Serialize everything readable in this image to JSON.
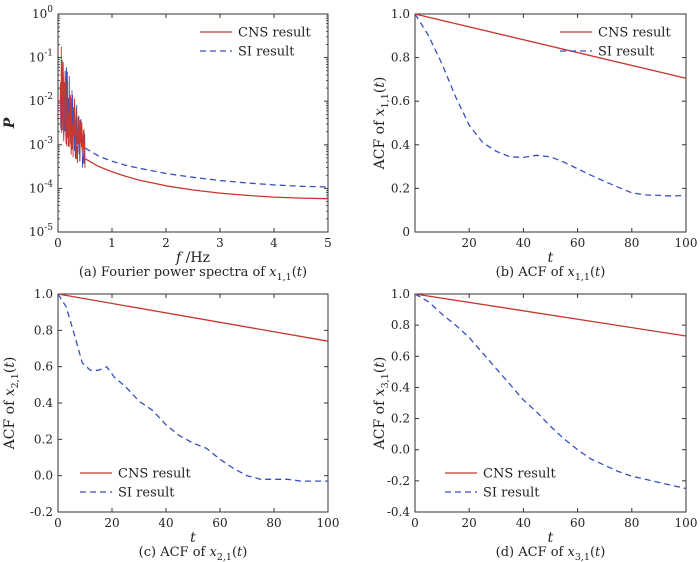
{
  "colors": {
    "cns": "#c8372d",
    "si": "#3a4fbf",
    "axis": "#333333"
  },
  "chart_data": [
    {
      "type": "line",
      "panel": "a",
      "caption": {
        "prefix": "(a) Fourier power spectra of ",
        "var": "x",
        "sub": "1,1",
        "arg": "(t)"
      },
      "xlabel": {
        "italic": "f",
        "rest": " /Hz"
      },
      "ylabel": "P",
      "xscale": "linear",
      "yscale": "log",
      "xlim": [
        0,
        5
      ],
      "ylim": [
        1e-05,
        1
      ],
      "xticks": [
        0,
        1,
        2,
        3,
        4,
        5
      ],
      "xticklabels": [
        "0",
        "1",
        "2",
        "3",
        "4",
        "5"
      ],
      "yticks": [
        1e-05,
        0.0001,
        0.001,
        0.01,
        0.1,
        1
      ],
      "yticklabels": [
        {
          "base": "10",
          "exp": "-5"
        },
        {
          "base": "10",
          "exp": "-4"
        },
        {
          "base": "10",
          "exp": "-3"
        },
        {
          "base": "10",
          "exp": "-2"
        },
        {
          "base": "10",
          "exp": "-1"
        },
        {
          "base": "10",
          "exp": "0"
        }
      ],
      "legend": {
        "position": "top-right"
      },
      "series": [
        {
          "name": "CNS result",
          "style": "solid",
          "color_key": "cns",
          "x": [
            0.5,
            0.75,
            1.0,
            1.25,
            1.5,
            2.0,
            2.5,
            3.0,
            3.5,
            4.0,
            4.5,
            5.0
          ],
          "y": [
            0.00048,
            0.00032,
            0.00024,
            0.00019,
            0.000155,
            0.000115,
            9.2e-05,
            7.8e-05,
            6.9e-05,
            6.3e-05,
            6e-05,
            5.8e-05
          ]
        },
        {
          "name": "SI result",
          "style": "dashed",
          "color_key": "si",
          "x": [
            0.5,
            0.75,
            1.0,
            1.25,
            1.5,
            2.0,
            2.5,
            3.0,
            3.5,
            4.0,
            4.5,
            5.0
          ],
          "y": [
            0.00085,
            0.00055,
            0.00042,
            0.00034,
            0.00029,
            0.00022,
            0.00018,
            0.000152,
            0.000133,
            0.00012,
            0.000112,
            0.000108
          ]
        }
      ],
      "noisy_band": {
        "x_range": [
          0.04,
          0.5
        ],
        "peak": 0.18,
        "floor": 0.0006
      }
    },
    {
      "type": "line",
      "panel": "b",
      "caption": {
        "prefix": "(b) ACF of ",
        "var": "x",
        "sub": "1,1",
        "arg": "(t)"
      },
      "xlabel": {
        "italic": "t",
        "rest": ""
      },
      "ylabel": {
        "prefix": "ACF of ",
        "var": "x",
        "sub": "1,1",
        "arg": "(t)"
      },
      "xlim": [
        0,
        100
      ],
      "ylim": [
        0,
        1.0
      ],
      "xticks": [
        20,
        40,
        60,
        80,
        100
      ],
      "xticklabels": [
        "20",
        "40",
        "60",
        "80",
        "100"
      ],
      "yticks": [
        0,
        0.2,
        0.4,
        0.6,
        0.8,
        1.0
      ],
      "yticklabels": [
        "0",
        "0.2",
        "0.4",
        "0.6",
        "0.8",
        "1.0"
      ],
      "legend": {
        "position": "top-right"
      },
      "series": [
        {
          "name": "CNS result",
          "style": "solid",
          "color_key": "cns",
          "x": [
            0,
            100
          ],
          "y": [
            1.0,
            0.705
          ]
        },
        {
          "name": "SI result",
          "style": "dashed",
          "color_key": "si",
          "x": [
            0,
            5,
            10,
            15,
            20,
            25,
            30,
            35,
            40,
            45,
            50,
            55,
            60,
            65,
            70,
            75,
            80,
            85,
            90,
            95,
            100
          ],
          "y": [
            1.0,
            0.9,
            0.77,
            0.62,
            0.49,
            0.41,
            0.37,
            0.345,
            0.342,
            0.352,
            0.345,
            0.32,
            0.29,
            0.26,
            0.232,
            0.205,
            0.18,
            0.17,
            0.168,
            0.165,
            0.168
          ]
        }
      ]
    },
    {
      "type": "line",
      "panel": "c",
      "caption": {
        "prefix": "(c) ACF of ",
        "var": "x",
        "sub": "2,1",
        "arg": "(t)"
      },
      "xlabel": {
        "italic": "t",
        "rest": ""
      },
      "ylabel": {
        "prefix": "ACF of ",
        "var": "x",
        "sub": "2,1",
        "arg": "(t)"
      },
      "xlim": [
        0,
        100
      ],
      "ylim": [
        -0.2,
        1.0
      ],
      "xticks": [
        0,
        20,
        40,
        60,
        80,
        100
      ],
      "xticklabels": [
        "0",
        "20",
        "40",
        "60",
        "80",
        "100"
      ],
      "yticks": [
        -0.2,
        0,
        0.2,
        0.4,
        0.6,
        0.8,
        1.0
      ],
      "yticklabels": [
        "-0.2",
        "0.0",
        "0.2",
        "0.4",
        "0.6",
        "0.8",
        "1.0"
      ],
      "legend": {
        "position": "bottom-center"
      },
      "series": [
        {
          "name": "CNS result",
          "style": "solid",
          "color_key": "cns",
          "x": [
            0,
            100
          ],
          "y": [
            1.0,
            0.74
          ]
        },
        {
          "name": "SI result",
          "style": "dashed",
          "color_key": "si",
          "x": [
            0,
            3,
            6,
            9,
            12,
            15,
            18,
            21,
            25,
            30,
            35,
            40,
            45,
            50,
            55,
            60,
            65,
            70,
            75,
            80,
            85,
            90,
            95,
            100
          ],
          "y": [
            1.0,
            0.93,
            0.78,
            0.62,
            0.58,
            0.58,
            0.6,
            0.54,
            0.49,
            0.41,
            0.36,
            0.28,
            0.22,
            0.18,
            0.15,
            0.09,
            0.04,
            0.0,
            -0.02,
            -0.02,
            -0.02,
            -0.03,
            -0.03,
            -0.03
          ]
        }
      ]
    },
    {
      "type": "line",
      "panel": "d",
      "caption": {
        "prefix": "(d) ACF of ",
        "var": "x",
        "sub": "3,1",
        "arg": "(t)"
      },
      "xlabel": {
        "italic": "t",
        "rest": ""
      },
      "ylabel": {
        "prefix": "ACF of ",
        "var": "x",
        "sub": "3,1",
        "arg": "(t)"
      },
      "xlim": [
        0,
        100
      ],
      "ylim": [
        -0.4,
        1.0
      ],
      "xticks": [
        0,
        20,
        40,
        60,
        80,
        100
      ],
      "xticklabels": [
        "0",
        "20",
        "40",
        "60",
        "80",
        "100"
      ],
      "yticks": [
        -0.4,
        -0.2,
        0,
        0.2,
        0.4,
        0.6,
        0.8,
        1.0
      ],
      "yticklabels": [
        "-0.4",
        "-0.2",
        "0.0",
        "0.2",
        "0.4",
        "0.6",
        "0.8",
        "1.0"
      ],
      "legend": {
        "position": "bottom-center"
      },
      "series": [
        {
          "name": "CNS result",
          "style": "solid",
          "color_key": "cns",
          "x": [
            0,
            100
          ],
          "y": [
            1.0,
            0.73
          ]
        },
        {
          "name": "SI result",
          "style": "dashed",
          "color_key": "si",
          "x": [
            0,
            5,
            10,
            15,
            20,
            25,
            30,
            35,
            40,
            45,
            50,
            55,
            60,
            65,
            70,
            75,
            80,
            85,
            90,
            95,
            100
          ],
          "y": [
            1.0,
            0.95,
            0.87,
            0.8,
            0.72,
            0.62,
            0.52,
            0.42,
            0.32,
            0.24,
            0.15,
            0.07,
            0.0,
            -0.06,
            -0.1,
            -0.14,
            -0.17,
            -0.19,
            -0.21,
            -0.23,
            -0.25
          ]
        }
      ]
    }
  ]
}
